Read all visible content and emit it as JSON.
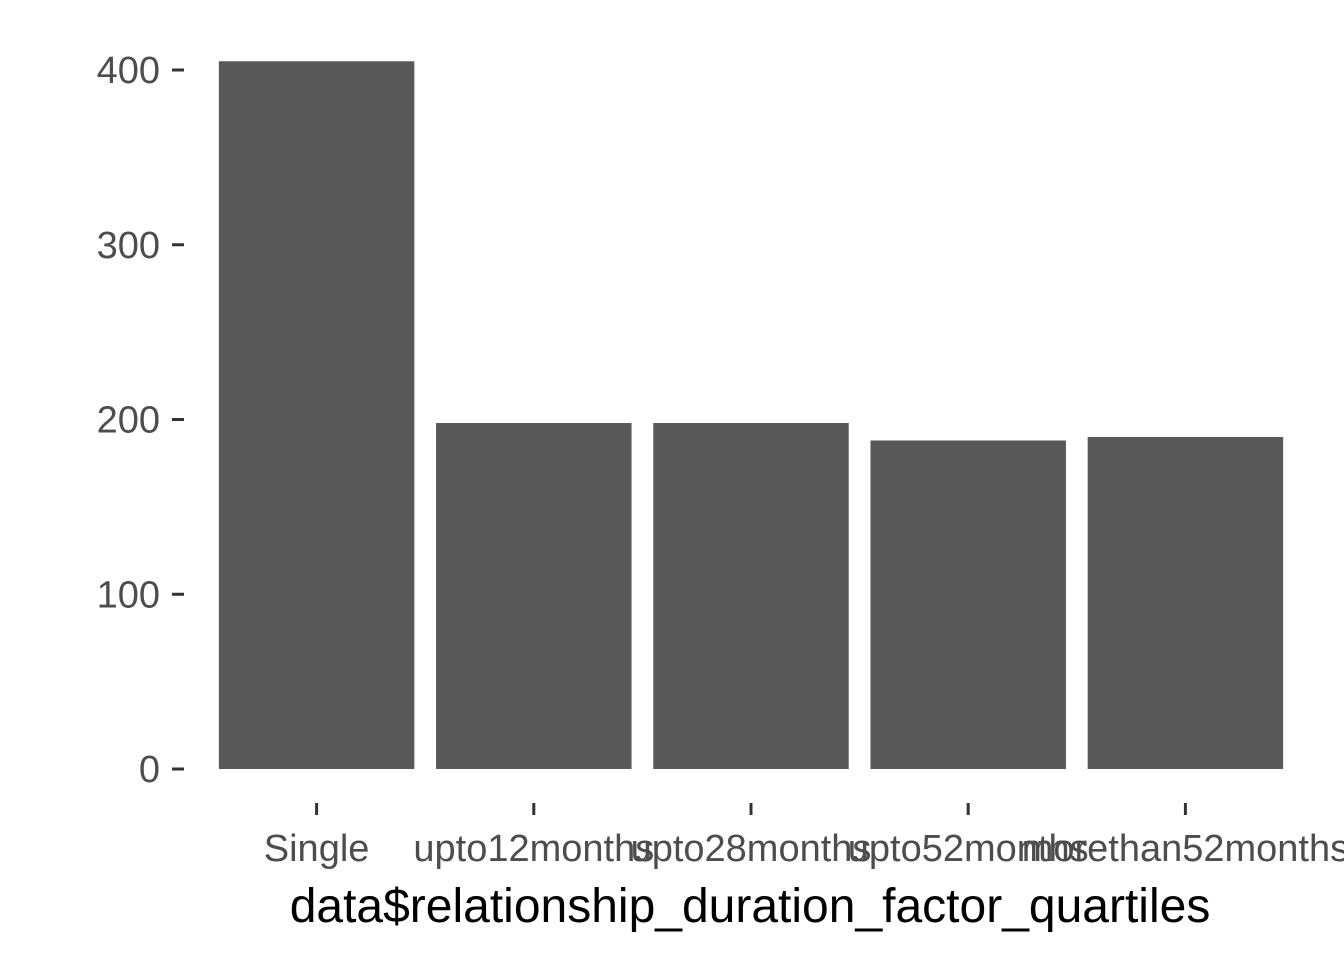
{
  "chart_data": {
    "type": "bar",
    "categories": [
      "Single",
      "upto12months",
      "upto28months",
      "upto52months",
      "morethan52months"
    ],
    "values": [
      405,
      198,
      198,
      188,
      190
    ],
    "title": "",
    "xlabel": "data$relationship_duration_factor_quartiles",
    "ylabel": "",
    "ylim": [
      0,
      400
    ],
    "yticks": [
      0,
      100,
      200,
      300,
      400
    ],
    "grid": false,
    "legend": "none",
    "colors": {
      "bar": "#595959",
      "tick": "#333333",
      "tick_label": "#4d4d4d",
      "axis_title": "#000000",
      "background": "#ffffff"
    }
  }
}
